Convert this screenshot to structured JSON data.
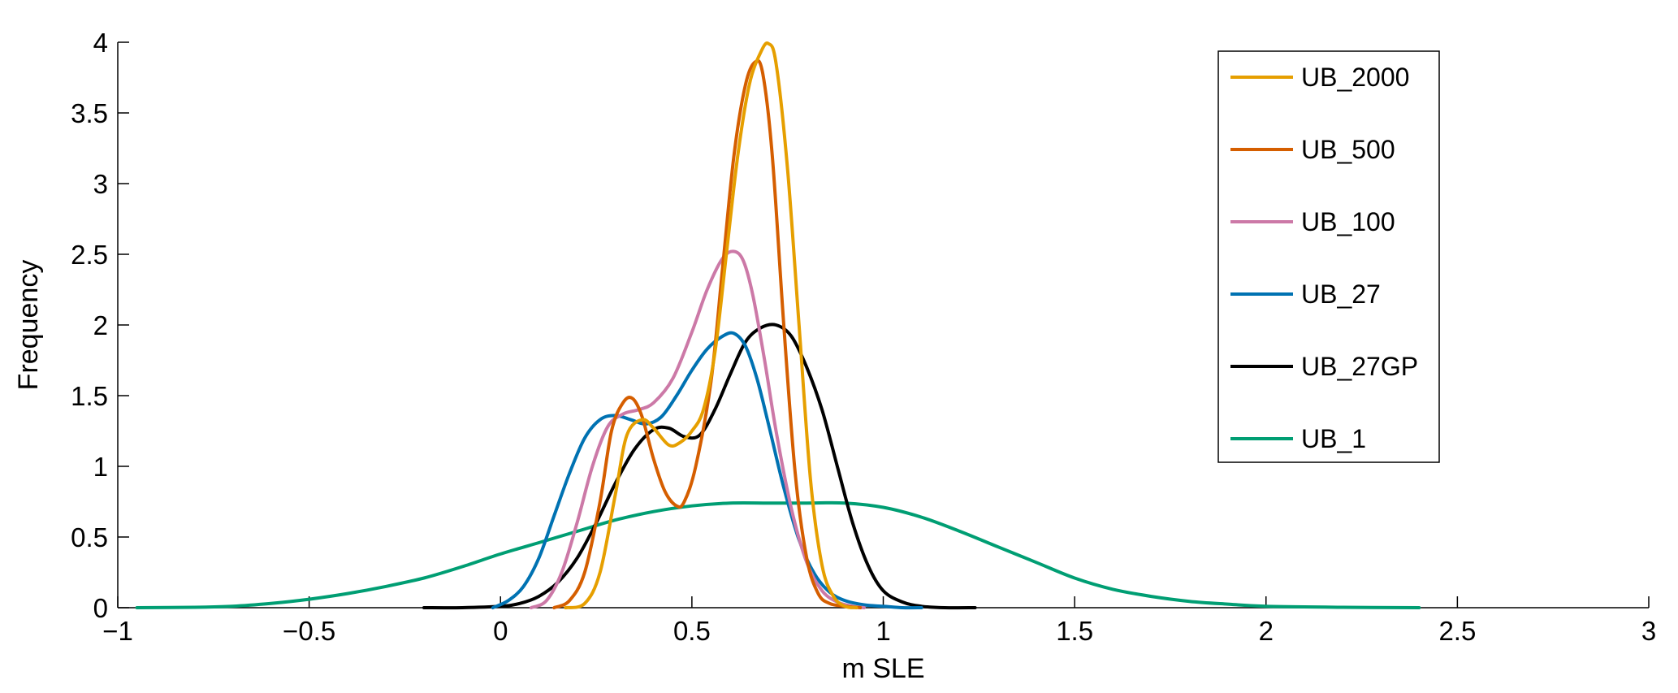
{
  "chart_data": {
    "type": "line",
    "xlabel": "m SLE",
    "ylabel": "Frequency",
    "xlim": [
      -1,
      3
    ],
    "ylim": [
      0,
      4
    ],
    "xticks": [
      "−1",
      "−0.5",
      "0",
      "0.5",
      "1",
      "1.5",
      "2",
      "2.5",
      "3"
    ],
    "xtick_values": [
      -1,
      -0.5,
      0,
      0.5,
      1,
      1.5,
      2,
      2.5,
      3
    ],
    "yticks": [
      "0",
      "0.5",
      "1",
      "1.5",
      "2",
      "2.5",
      "3",
      "3.5",
      "4"
    ],
    "ytick_values": [
      0,
      0.5,
      1,
      1.5,
      2,
      2.5,
      3,
      3.5,
      4
    ],
    "grid": false,
    "legend_position": "top-right",
    "series": [
      {
        "name": "UB_2000",
        "color": "#E69F00",
        "x": [
          0.17,
          0.22,
          0.26,
          0.3,
          0.33,
          0.37,
          0.4,
          0.44,
          0.47,
          0.5,
          0.53,
          0.56,
          0.59,
          0.62,
          0.65,
          0.68,
          0.7,
          0.72,
          0.75,
          0.78,
          0.81,
          0.84,
          0.87,
          0.9,
          0.93
        ],
        "y": [
          0.0,
          0.03,
          0.25,
          0.8,
          1.22,
          1.33,
          1.27,
          1.15,
          1.17,
          1.25,
          1.4,
          1.8,
          2.5,
          3.2,
          3.7,
          3.93,
          3.99,
          3.85,
          3.1,
          2.0,
          0.9,
          0.3,
          0.08,
          0.01,
          0.0
        ]
      },
      {
        "name": "UB_500",
        "color": "#D55E00",
        "x": [
          0.14,
          0.18,
          0.22,
          0.26,
          0.29,
          0.32,
          0.345,
          0.37,
          0.4,
          0.43,
          0.46,
          0.48,
          0.51,
          0.55,
          0.58,
          0.61,
          0.64,
          0.665,
          0.685,
          0.71,
          0.74,
          0.77,
          0.8,
          0.83,
          0.86,
          0.9,
          0.94
        ],
        "y": [
          0.0,
          0.05,
          0.25,
          0.75,
          1.25,
          1.45,
          1.48,
          1.35,
          1.05,
          0.82,
          0.72,
          0.75,
          1.0,
          1.6,
          2.4,
          3.2,
          3.7,
          3.86,
          3.78,
          3.2,
          2.0,
          0.95,
          0.35,
          0.1,
          0.03,
          0.01,
          0.0
        ]
      },
      {
        "name": "UB_100",
        "color": "#CC79A7",
        "x": [
          0.08,
          0.12,
          0.16,
          0.2,
          0.24,
          0.28,
          0.32,
          0.36,
          0.4,
          0.45,
          0.5,
          0.54,
          0.58,
          0.61,
          0.635,
          0.66,
          0.69,
          0.72,
          0.76,
          0.8,
          0.84,
          0.88,
          0.92,
          0.95
        ],
        "y": [
          0.0,
          0.05,
          0.25,
          0.6,
          1.0,
          1.28,
          1.37,
          1.4,
          1.45,
          1.62,
          1.95,
          2.25,
          2.47,
          2.52,
          2.45,
          2.2,
          1.75,
          1.25,
          0.7,
          0.32,
          0.12,
          0.04,
          0.01,
          0.0
        ]
      },
      {
        "name": "UB_27",
        "color": "#0072B2",
        "x": [
          -0.02,
          0.02,
          0.06,
          0.1,
          0.14,
          0.18,
          0.22,
          0.26,
          0.3,
          0.34,
          0.38,
          0.42,
          0.46,
          0.5,
          0.54,
          0.58,
          0.61,
          0.64,
          0.67,
          0.7,
          0.74,
          0.78,
          0.82,
          0.86,
          0.9,
          0.95,
          1.0,
          1.05,
          1.1
        ],
        "y": [
          0.0,
          0.05,
          0.15,
          0.35,
          0.65,
          0.95,
          1.2,
          1.33,
          1.36,
          1.33,
          1.3,
          1.35,
          1.5,
          1.68,
          1.83,
          1.92,
          1.94,
          1.85,
          1.62,
          1.3,
          0.85,
          0.48,
          0.24,
          0.11,
          0.05,
          0.02,
          0.01,
          0.0,
          0.0
        ]
      },
      {
        "name": "UB_27GP",
        "color": "#000000",
        "x": [
          -0.2,
          -0.1,
          0.0,
          0.05,
          0.1,
          0.15,
          0.2,
          0.25,
          0.3,
          0.35,
          0.4,
          0.44,
          0.48,
          0.52,
          0.56,
          0.6,
          0.64,
          0.68,
          0.72,
          0.76,
          0.8,
          0.84,
          0.88,
          0.92,
          0.96,
          1.0,
          1.05,
          1.1,
          1.16,
          1.24
        ],
        "y": [
          0.0,
          0.0,
          0.01,
          0.03,
          0.08,
          0.18,
          0.35,
          0.6,
          0.88,
          1.12,
          1.26,
          1.27,
          1.21,
          1.22,
          1.4,
          1.65,
          1.88,
          1.98,
          2.0,
          1.92,
          1.7,
          1.4,
          1.0,
          0.6,
          0.3,
          0.12,
          0.04,
          0.01,
          0.0,
          0.0
        ]
      },
      {
        "name": "UB_1",
        "color": "#009E73",
        "x": [
          -0.95,
          -0.8,
          -0.7,
          -0.6,
          -0.5,
          -0.4,
          -0.3,
          -0.2,
          -0.1,
          0.0,
          0.1,
          0.2,
          0.3,
          0.4,
          0.5,
          0.6,
          0.7,
          0.8,
          0.9,
          1.0,
          1.1,
          1.2,
          1.3,
          1.4,
          1.5,
          1.6,
          1.7,
          1.8,
          1.9,
          2.0,
          2.2,
          2.4
        ],
        "y": [
          0.0,
          0.003,
          0.01,
          0.03,
          0.06,
          0.1,
          0.15,
          0.21,
          0.29,
          0.38,
          0.46,
          0.54,
          0.62,
          0.68,
          0.72,
          0.74,
          0.74,
          0.74,
          0.74,
          0.71,
          0.64,
          0.54,
          0.43,
          0.32,
          0.21,
          0.13,
          0.08,
          0.045,
          0.025,
          0.01,
          0.003,
          0.0
        ]
      }
    ]
  }
}
